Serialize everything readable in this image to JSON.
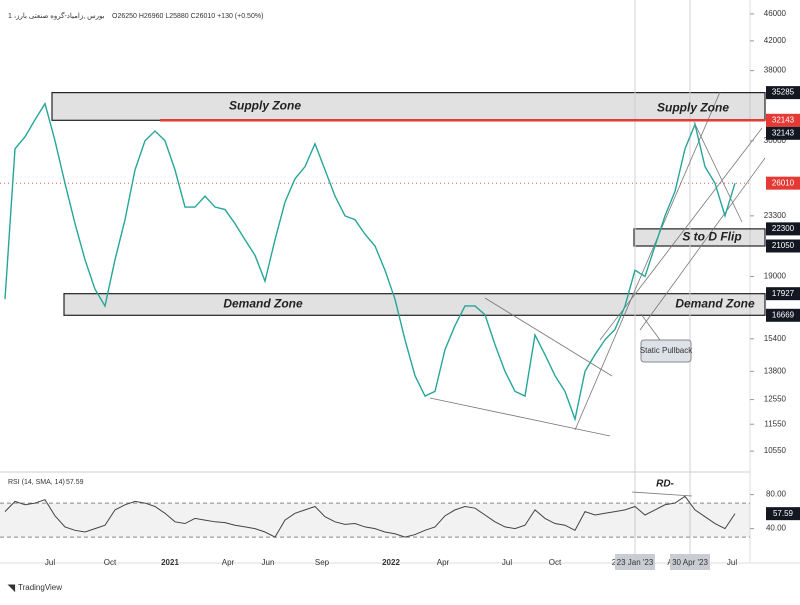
{
  "header": {
    "symbol": "1 ،بورس ,زامیاد-گروه صنعتی بارز",
    "ohlc": "O26250 H26960 L25880 C26010 +130 (+0.50%)"
  },
  "chart_data": {
    "type": "line",
    "scale": "log",
    "color": "#26a69a",
    "values": [
      17600,
      29200,
      30400,
      32200,
      34000,
      30000,
      26000,
      22700,
      20100,
      18200,
      17200,
      20100,
      23000,
      27200,
      30000,
      31000,
      30000,
      27200,
      24000,
      24000,
      24900,
      24000,
      23800,
      22700,
      21500,
      20400,
      18700,
      21500,
      24400,
      26400,
      27500,
      29700,
      27200,
      24900,
      23300,
      23000,
      21900,
      21050,
      19400,
      17600,
      15350,
      13600,
      12700,
      12900,
      14850,
      16100,
      17200,
      17200,
      16700,
      15100,
      13800,
      12900,
      12700,
      15600,
      14600,
      13600,
      12900,
      11750,
      13800,
      14600,
      15350,
      15900,
      17200,
      19400,
      19000,
      21050,
      23300,
      25300,
      29200,
      31700,
      27500,
      26000,
      23300,
      26010
    ],
    "ylim": [
      9900,
      48200
    ],
    "yticks": [
      46000,
      42000,
      38000,
      30000,
      23300,
      19000,
      15400,
      13800,
      12550,
      11550,
      10550
    ],
    "xtick_labels": [
      "Jul",
      "Oct",
      "2021",
      "Apr",
      "Jun",
      "Sep",
      "2022",
      "Apr",
      "Jul",
      "Oct",
      "2",
      "23 Jan '23",
      "A",
      "30 Apr '23",
      "Jul"
    ],
    "price_labels": [
      {
        "value": 35285,
        "color": "#131722"
      },
      {
        "value": 32143,
        "color": "#e53935"
      },
      {
        "value": 32143,
        "color": "#131722"
      },
      {
        "value": 26010,
        "color": "#e53935"
      },
      {
        "value": 22300,
        "color": "#131722"
      },
      {
        "value": 21050,
        "color": "#131722"
      },
      {
        "value": 17927,
        "color": "#131722"
      },
      {
        "value": 16669,
        "color": "#131722"
      }
    ],
    "zones": [
      {
        "label": "Supply Zone",
        "low": 32143,
        "high": 35285
      },
      {
        "label": "Demand Zone",
        "low": 16669,
        "high": 17927
      },
      {
        "label": "S to  D Flip",
        "low": 21050,
        "high": 22300
      }
    ],
    "second_labels": [
      "Supply Zone",
      "Demand Zone"
    ],
    "red_line": 32143,
    "annotation": "Static Pullback",
    "rsi": {
      "title": "RSI (14, SMA, 14)",
      "color": "#444",
      "values": [
        60,
        72,
        68,
        70,
        74,
        55,
        42,
        38,
        36,
        40,
        44,
        62,
        68,
        72,
        70,
        66,
        58,
        48,
        46,
        52,
        50,
        48,
        47,
        44,
        42,
        40,
        36,
        30,
        50,
        58,
        62,
        66,
        54,
        48,
        45,
        46,
        42,
        40,
        36,
        34,
        30,
        33,
        38,
        42,
        55,
        62,
        66,
        64,
        56,
        48,
        42,
        40,
        44,
        62,
        52,
        46,
        44,
        38,
        60,
        56,
        58,
        60,
        62,
        66,
        56,
        62,
        68,
        70,
        78,
        62,
        54,
        46,
        40,
        57.59
      ],
      "ylim": [
        9,
        103
      ],
      "yticks": [
        {
          "value": 80,
          "label": "80.00"
        },
        {
          "value": 40,
          "label": "40.00"
        }
      ],
      "band": [
        30,
        70
      ],
      "divergence": "RD-"
    },
    "footer": "TradingView"
  }
}
